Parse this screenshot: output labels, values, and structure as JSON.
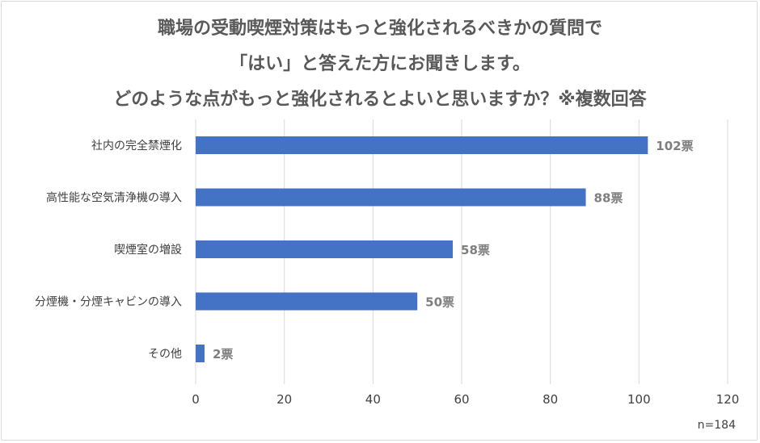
{
  "title_lines": [
    "職場の受動喫煙対策はもっと強化されるべきかの質問で",
    "「はい」と答えた方にお聞きします。",
    "どのような点がもっと強化されるとよいと思いますか？※複数回答"
  ],
  "sample_note": "n=184",
  "colors": {
    "bar": "#4472c4",
    "grid": "#d9d9d9",
    "text": "#404040",
    "label": "#7f7f7f"
  },
  "chart_data": {
    "type": "bar",
    "orientation": "horizontal",
    "categories": [
      "社内の完全禁煙化",
      "高性能な空気清浄機の導入",
      "喫煙室の増設",
      "分煙機・分煙キャビンの導入",
      "その他"
    ],
    "values": [
      102,
      88,
      58,
      50,
      2
    ],
    "data_labels": [
      "102票",
      "88票",
      "58票",
      "50票",
      "2票"
    ],
    "xlim": [
      0,
      120
    ],
    "xticks": [
      0,
      20,
      40,
      60,
      80,
      100,
      120
    ],
    "grid": true,
    "legend": "none"
  }
}
